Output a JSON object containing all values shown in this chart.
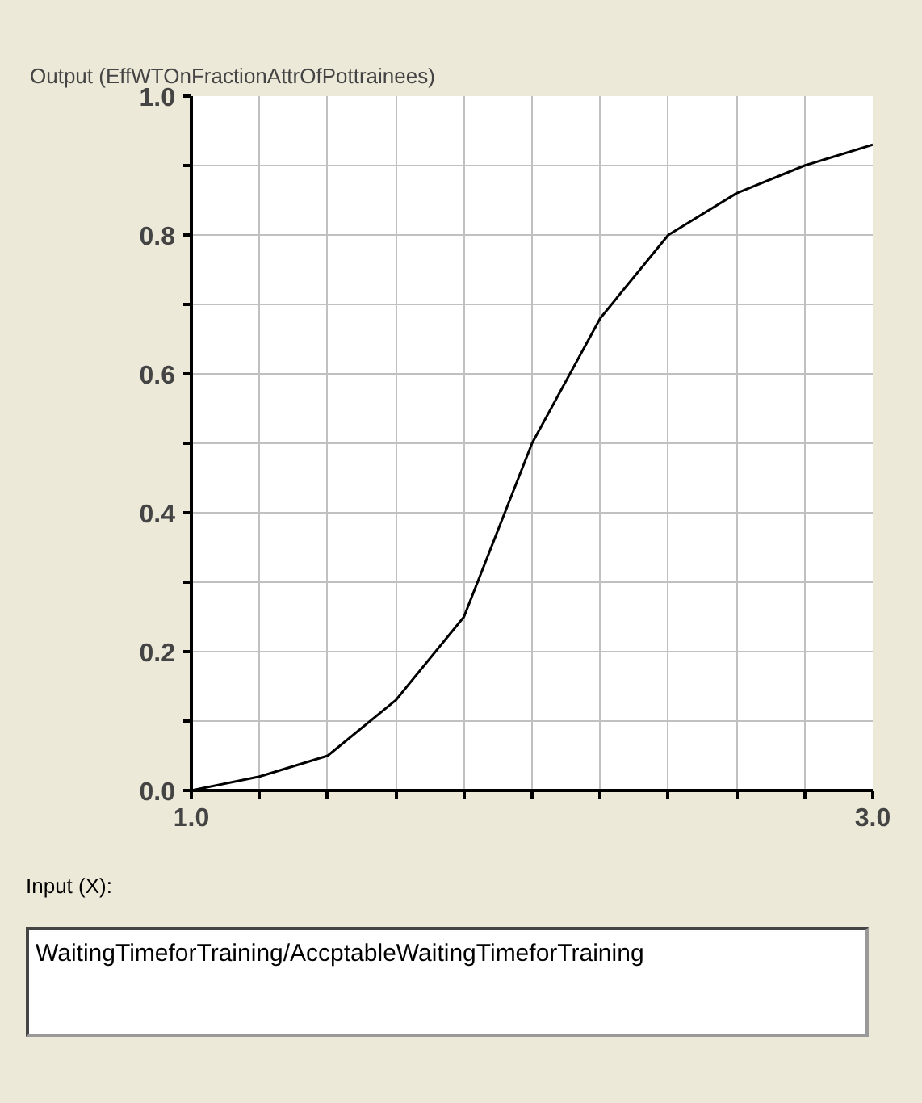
{
  "chart_data": {
    "type": "line",
    "ylabel": "Output (EffWTOnFractionAttrOfPottrainees)",
    "xlabel": "Input (X):",
    "annotations": [
      "WaitingTimeforTraining/AccptableWaitingTimeforTraining"
    ],
    "x": [
      1.0,
      1.2,
      1.4,
      1.6,
      1.8,
      2.0,
      2.2,
      2.4,
      2.6,
      2.8,
      3.0
    ],
    "series": [
      {
        "color": "#000000",
        "values": [
          0.0,
          0.02,
          0.05,
          0.13,
          0.25,
          0.5,
          0.68,
          0.8,
          0.86,
          0.9,
          0.93
        ]
      }
    ],
    "xlim": [
      1.0,
      3.0
    ],
    "xticks": [
      {
        "value": 1.0,
        "label": "1.0"
      },
      {
        "value": 1.2,
        "label": null
      },
      {
        "value": 1.4,
        "label": null
      },
      {
        "value": 1.6,
        "label": null
      },
      {
        "value": 1.8,
        "label": null
      },
      {
        "value": 2.0,
        "label": null
      },
      {
        "value": 2.2,
        "label": null
      },
      {
        "value": 2.4,
        "label": null
      },
      {
        "value": 2.6,
        "label": null
      },
      {
        "value": 2.8,
        "label": null
      },
      {
        "value": 3.0,
        "label": "3.0"
      }
    ],
    "ylim": [
      0.0,
      1.0
    ],
    "yticks": [
      {
        "value": 0.0,
        "label": "0.0"
      },
      {
        "value": 0.1,
        "label": null
      },
      {
        "value": 0.2,
        "label": "0.2"
      },
      {
        "value": 0.3,
        "label": null
      },
      {
        "value": 0.4,
        "label": "0.4"
      },
      {
        "value": 0.5,
        "label": null
      },
      {
        "value": 0.6,
        "label": "0.6"
      },
      {
        "value": 0.7,
        "label": null
      },
      {
        "value": 0.8,
        "label": "0.8"
      },
      {
        "value": 0.9,
        "label": null
      },
      {
        "value": 1.0,
        "label": "1.0"
      }
    ],
    "grid": true,
    "marker": "none",
    "line_style": "solid"
  }
}
